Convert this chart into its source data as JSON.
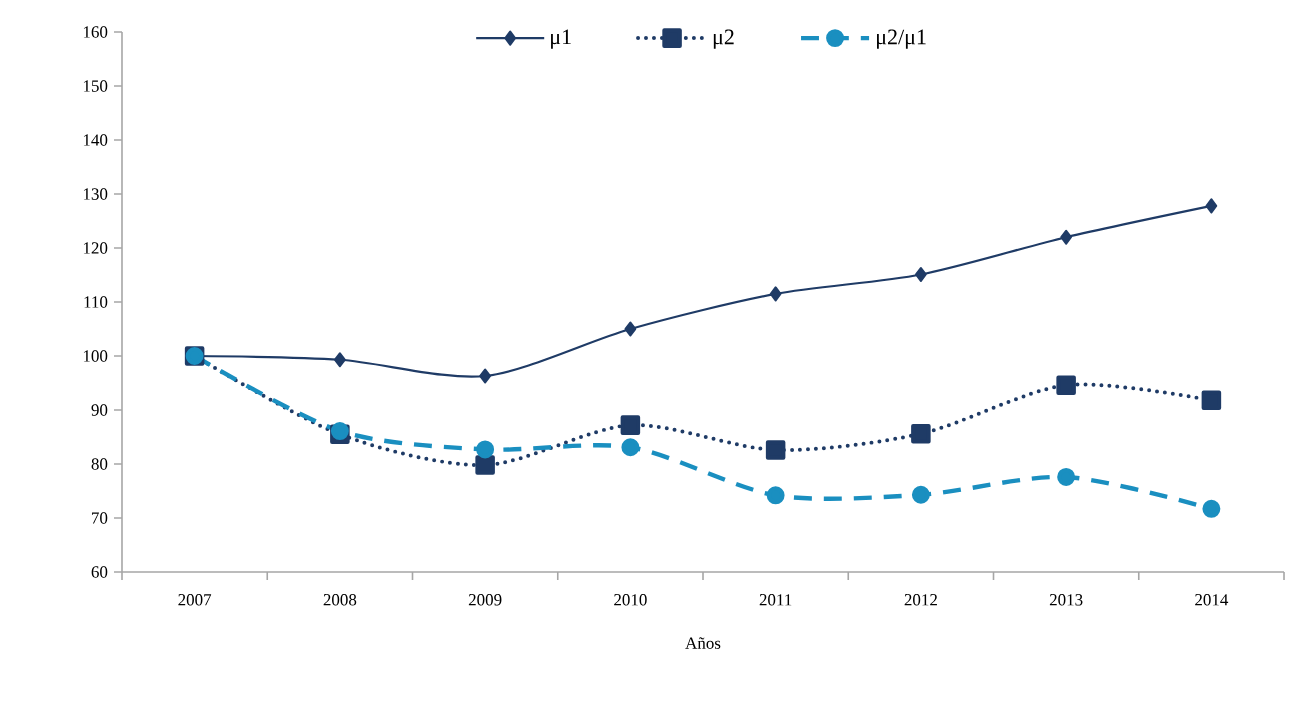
{
  "chart_data": {
    "type": "line",
    "xlabel": "Años",
    "categories": [
      "2007",
      "2008",
      "2009",
      "2010",
      "2011",
      "2012",
      "2013",
      "2014"
    ],
    "ylim": [
      60,
      160
    ],
    "yticks": [
      60,
      70,
      80,
      90,
      100,
      110,
      120,
      130,
      140,
      150,
      160
    ],
    "legend": "top",
    "grid": false,
    "series": [
      {
        "name": "μ1",
        "color": "#1f3b66",
        "marker": "diamond",
        "line_style": "solid",
        "values": [
          100,
          99.3,
          96.3,
          105,
          111.5,
          115.1,
          122,
          127.8
        ]
      },
      {
        "name": "μ2",
        "color": "#1f3b66",
        "marker": "square",
        "line_style": "dotted",
        "values": [
          100,
          85.5,
          79.8,
          87.2,
          82.6,
          85.6,
          94.6,
          91.8
        ]
      },
      {
        "name": "μ2/μ1",
        "color": "#1a8fc0",
        "marker": "circle",
        "line_style": "dashed",
        "values": [
          100,
          86.1,
          82.7,
          83.1,
          74.2,
          74.3,
          77.6,
          71.7
        ]
      }
    ]
  }
}
